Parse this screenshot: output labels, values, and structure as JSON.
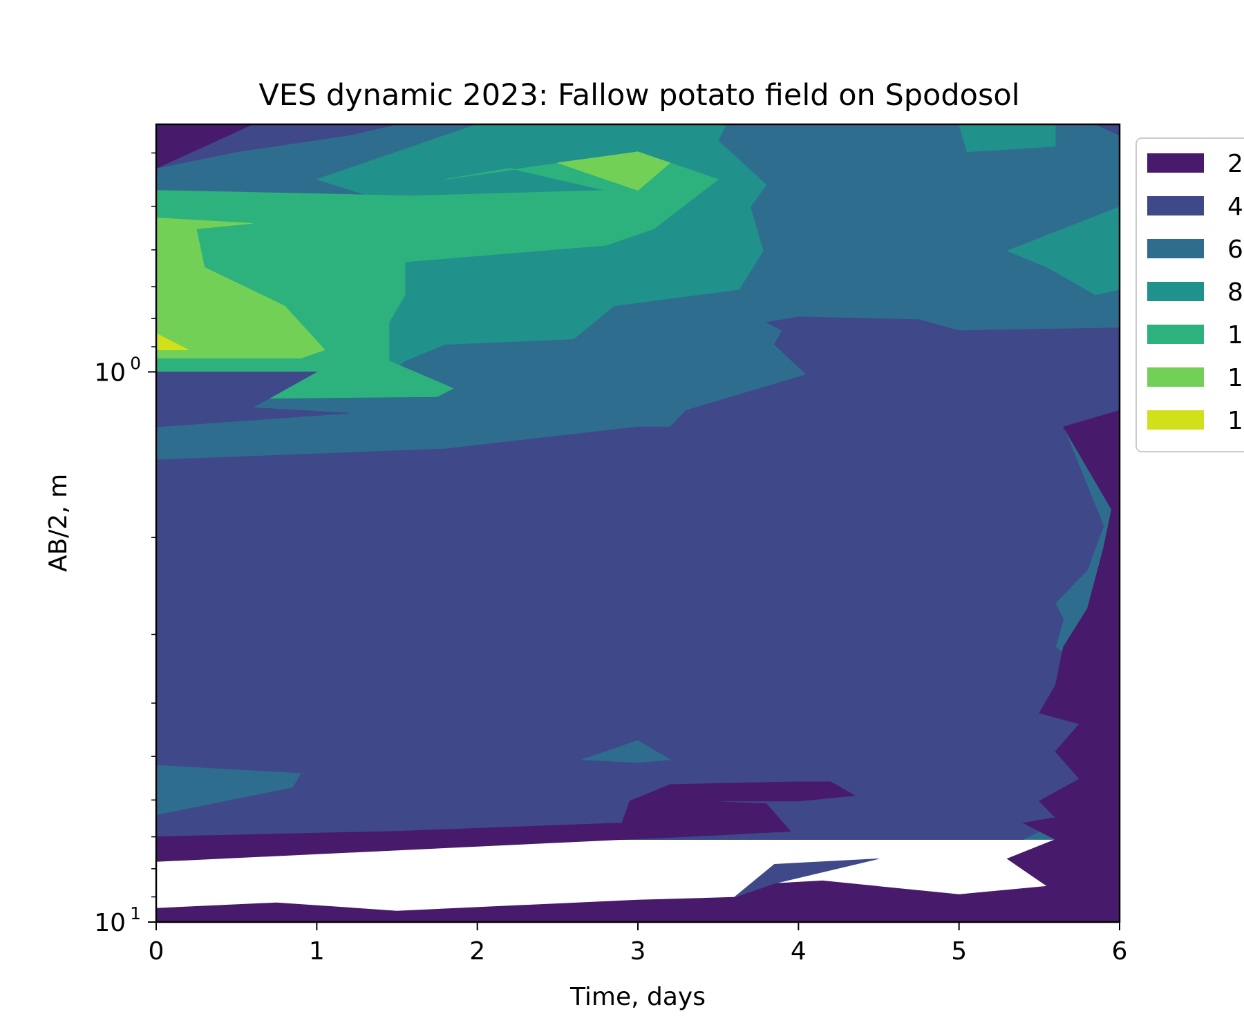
{
  "chart_data": {
    "type": "contourf",
    "title": "VES dynamic 2023: Fallow potato field on Spodosol",
    "xlabel": "Time, days",
    "ylabel": "AB/2, m",
    "xlim": [
      0,
      6
    ],
    "ylim_log10": [
      1,
      -0.45
    ],
    "yscale": "log",
    "y_inverted": true,
    "x_ticks": [
      "0",
      "1",
      "2",
      "3",
      "4",
      "5",
      "6"
    ],
    "y_ticks": [
      {
        "base": "10",
        "exp": "0",
        "value": 1
      },
      {
        "base": "10",
        "exp": "1",
        "value": 10
      }
    ],
    "grid": false,
    "legend_position": "right-outside-top",
    "colors": {
      "l1": "#481a6c",
      "l2": "#3f4889",
      "l3": "#2f6d8e",
      "l4": "#21918c",
      "l5": "#2db27d",
      "l6": "#73d056",
      "l7": "#d0e11c"
    },
    "legend": [
      {
        "label": "2",
        "color": "#481a6c"
      },
      {
        "label": "4",
        "color": "#3f4889"
      },
      {
        "label": "6",
        "color": "#2f6d8e"
      },
      {
        "label": "8",
        "color": "#21918c"
      },
      {
        "label": "1",
        "color": "#2db27d"
      },
      {
        "label": "1",
        "color": "#73d056"
      },
      {
        "label": "1",
        "color": "#d0e11c"
      }
    ],
    "regions": [
      {
        "level": "l3",
        "points": [
          [
            0,
            -0.45
          ],
          [
            6,
            -0.45
          ],
          [
            6,
            0.85
          ],
          [
            0,
            0.85
          ]
        ]
      },
      {
        "level": "l2",
        "points": [
          [
            0,
            -0.45
          ],
          [
            1.5,
            -0.45
          ],
          [
            1.2,
            -0.43
          ],
          [
            0.5,
            -0.4
          ],
          [
            0,
            -0.37
          ]
        ]
      },
      {
        "level": "l1",
        "points": [
          [
            0,
            -0.45
          ],
          [
            0.6,
            -0.45
          ],
          [
            0,
            -0.37
          ]
        ]
      },
      {
        "level": "l2",
        "points": [
          [
            5.85,
            -0.45
          ],
          [
            6,
            -0.45
          ],
          [
            6,
            -0.43
          ]
        ]
      },
      {
        "level": "l4",
        "points": [
          [
            2,
            -0.45
          ],
          [
            3.55,
            -0.45
          ],
          [
            3.5,
            -0.42
          ],
          [
            3.8,
            -0.34
          ],
          [
            3.7,
            -0.3
          ],
          [
            3.78,
            -0.22
          ],
          [
            3.63,
            -0.15
          ],
          [
            2.85,
            -0.12
          ],
          [
            2.6,
            -0.06
          ],
          [
            1.8,
            -0.05
          ],
          [
            1.55,
            -0.02
          ],
          [
            1.45,
            0
          ],
          [
            1.5,
            0.015
          ],
          [
            1.72,
            0.04
          ],
          [
            0.95,
            0.04
          ],
          [
            0.8,
            0.025
          ],
          [
            0.45,
            0.005
          ],
          [
            0.2,
            0.005
          ],
          [
            0,
            0.01
          ],
          [
            0,
            -0.28
          ],
          [
            1.55,
            -0.3
          ],
          [
            1,
            -0.35
          ],
          [
            1.6,
            -0.41
          ]
        ]
      },
      {
        "level": "l5",
        "points": [
          [
            1.8,
            -0.35
          ],
          [
            3,
            -0.4
          ],
          [
            3.5,
            -0.35
          ],
          [
            3.1,
            -0.26
          ],
          [
            2.8,
            -0.23
          ],
          [
            1.55,
            -0.2
          ],
          [
            1.55,
            -0.14
          ],
          [
            1.45,
            -0.09
          ],
          [
            1.45,
            -0.02
          ],
          [
            1.85,
            0.03
          ],
          [
            1.75,
            0.045
          ],
          [
            0,
            0.05
          ],
          [
            0,
            -0.33
          ],
          [
            1.6,
            -0.32
          ],
          [
            2.8,
            -0.33
          ],
          [
            2.2,
            -0.37
          ]
        ]
      },
      {
        "level": "l6",
        "points": [
          [
            2.5,
            -0.38
          ],
          [
            3,
            -0.4
          ],
          [
            3.2,
            -0.38
          ],
          [
            3,
            -0.33
          ]
        ]
      },
      {
        "level": "l6",
        "points": [
          [
            0,
            -0.28
          ],
          [
            0.6,
            -0.27
          ],
          [
            0.25,
            -0.26
          ],
          [
            0.3,
            -0.19
          ],
          [
            0.8,
            -0.12
          ],
          [
            1.05,
            -0.04
          ],
          [
            0.9,
            -0.025
          ],
          [
            0,
            -0.025
          ]
        ]
      },
      {
        "level": "l7",
        "points": [
          [
            0,
            -0.07
          ],
          [
            0.2,
            -0.04
          ],
          [
            0,
            -0.04
          ]
        ]
      },
      {
        "level": "l4",
        "points": [
          [
            5,
            -0.45
          ],
          [
            5.6,
            -0.45
          ],
          [
            5.6,
            -0.41
          ],
          [
            5.05,
            -0.4
          ]
        ]
      },
      {
        "level": "l4",
        "points": [
          [
            6,
            -0.3
          ],
          [
            6,
            -0.15
          ],
          [
            5.85,
            -0.14
          ],
          [
            5.55,
            -0.19
          ],
          [
            5.3,
            -0.22
          ]
        ]
      },
      {
        "level": "l2",
        "points": [
          [
            3.8,
            -0.09
          ],
          [
            4,
            -0.1
          ],
          [
            4.75,
            -0.095
          ],
          [
            5,
            -0.075
          ],
          [
            6,
            -0.08
          ],
          [
            6,
            0.07
          ],
          [
            5.65,
            0.1
          ],
          [
            5.9,
            0.28
          ],
          [
            5.8,
            0.36
          ],
          [
            5.6,
            0.42
          ],
          [
            5.65,
            0.45
          ],
          [
            5.6,
            0.5
          ],
          [
            5.85,
            0.56
          ],
          [
            5.75,
            0.64
          ],
          [
            5.6,
            0.69
          ],
          [
            5.75,
            0.74
          ],
          [
            5.6,
            0.82
          ],
          [
            5.4,
            0.85
          ],
          [
            0,
            0.85
          ],
          [
            0,
            0.16
          ],
          [
            1.8,
            0.14
          ],
          [
            3,
            0.1
          ],
          [
            3.2,
            0.1
          ],
          [
            3.3,
            0.07
          ],
          [
            4.05,
            0.005
          ],
          [
            3.85,
            -0.05
          ],
          [
            3.9,
            -0.075
          ]
        ]
      },
      {
        "level": "l2",
        "points": [
          [
            0,
            0
          ],
          [
            1,
            0
          ],
          [
            0.6,
            0.065
          ],
          [
            1.2,
            0.075
          ],
          [
            0,
            0.1
          ]
        ]
      },
      {
        "level": "l3",
        "points": [
          [
            0,
            0.715
          ],
          [
            0.9,
            0.73
          ],
          [
            0.85,
            0.755
          ],
          [
            0,
            0.805
          ]
        ]
      },
      {
        "level": "l3",
        "points": [
          [
            2.65,
            0.705
          ],
          [
            3,
            0.67
          ],
          [
            3.2,
            0.705
          ],
          [
            3,
            0.71
          ]
        ]
      },
      {
        "level": "l1",
        "points": [
          [
            6,
            0.07
          ],
          [
            6,
            1
          ],
          [
            0,
            1
          ],
          [
            0,
            0.975
          ],
          [
            0.75,
            0.965
          ],
          [
            1.5,
            0.98
          ],
          [
            3,
            0.96
          ],
          [
            3.6,
            0.955
          ],
          [
            3.85,
            0.93
          ],
          [
            4.15,
            0.925
          ],
          [
            5,
            0.95
          ],
          [
            5.55,
            0.935
          ],
          [
            5.3,
            0.885
          ],
          [
            5.6,
            0.85
          ],
          [
            5.4,
            0.82
          ],
          [
            5.6,
            0.81
          ],
          [
            5.5,
            0.78
          ],
          [
            5.75,
            0.74
          ],
          [
            5.6,
            0.69
          ],
          [
            5.75,
            0.64
          ],
          [
            5.5,
            0.62
          ],
          [
            5.6,
            0.57
          ],
          [
            5.65,
            0.5
          ],
          [
            5.8,
            0.43
          ],
          [
            5.9,
            0.32
          ],
          [
            5.95,
            0.25
          ],
          [
            5.65,
            0.1
          ]
        ]
      },
      {
        "level": "l1",
        "points": [
          [
            0,
            0.845
          ],
          [
            1.5,
            0.835
          ],
          [
            2.9,
            0.82
          ],
          [
            2.95,
            0.78
          ],
          [
            3.2,
            0.75
          ],
          [
            4,
            0.745
          ],
          [
            4.2,
            0.745
          ],
          [
            4.35,
            0.77
          ],
          [
            4,
            0.78
          ],
          [
            3.4,
            0.78
          ],
          [
            3.8,
            0.785
          ],
          [
            3.95,
            0.835
          ],
          [
            3.3,
            0.845
          ],
          [
            2.9,
            0.85
          ],
          [
            0,
            0.89
          ]
        ]
      },
      {
        "level": "l2",
        "points": [
          [
            3.85,
            0.895
          ],
          [
            4.5,
            0.885
          ],
          [
            3.85,
            0.93
          ],
          [
            3.6,
            0.955
          ]
        ]
      }
    ]
  }
}
